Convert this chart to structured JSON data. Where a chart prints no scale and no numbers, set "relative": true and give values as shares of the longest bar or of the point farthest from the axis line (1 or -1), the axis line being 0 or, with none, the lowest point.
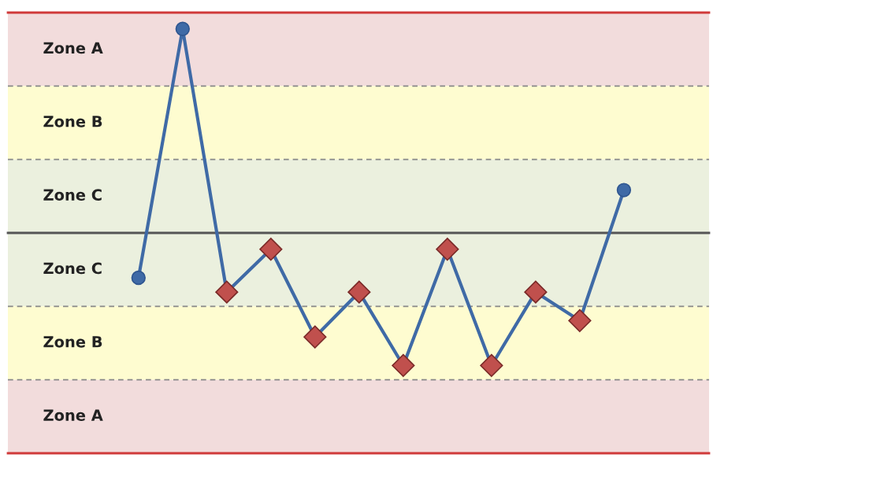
{
  "chart_data": {
    "type": "line",
    "relative": true,
    "categories": [
      null,
      null,
      null,
      null,
      null,
      null,
      null,
      null,
      null,
      null,
      null,
      null
    ],
    "series": [
      {
        "color": "#3f6aa6",
        "marker": "circle",
        "values": [
          -0.22,
          1,
          -0.29,
          -0.08,
          -0.51,
          -0.29,
          -0.65,
          -0.08,
          -0.65,
          -0.29,
          -0.43,
          0.21
        ],
        "colors": [
          "#3f6aa6",
          "#3f6aa6",
          "#c0504d",
          "#c0504d",
          "#c0504d",
          "#c0504d",
          "#c0504d",
          "#c0504d",
          "#c0504d",
          "#c0504d",
          "#c0504d",
          "#3f6aa6"
        ]
      }
    ],
    "bands": [
      {
        "axis": "y",
        "from": 0.72,
        "to": 1.08,
        "label": "Zone A",
        "color": "#f2dcdc"
      },
      {
        "axis": "y",
        "from": 0.36,
        "to": 0.72,
        "label": "Zone B",
        "color": "#fefcd0"
      },
      {
        "axis": "y",
        "from": 0,
        "to": 0.36,
        "label": "Zone C",
        "color": "#ebf0de"
      },
      {
        "axis": "y",
        "from": -0.36,
        "to": 0,
        "label": "Zone C",
        "color": "#ebf0de"
      },
      {
        "axis": "y",
        "from": -0.72,
        "to": -0.36,
        "label": "Zone B",
        "color": "#fefcd0"
      },
      {
        "axis": "y",
        "from": -1.08,
        "to": -0.72,
        "label": "Zone A",
        "color": "#f2dcdc"
      }
    ],
    "ref_lines": [
      {
        "axis": "y",
        "value": 0,
        "color": "#555555",
        "line_style": "solid"
      },
      {
        "axis": "y",
        "value": 0.36,
        "color": "#888888",
        "line_style": "dashed"
      },
      {
        "axis": "y",
        "value": 0.72,
        "color": "#888888",
        "line_style": "dashed"
      },
      {
        "axis": "y",
        "value": -0.36,
        "color": "#888888",
        "line_style": "dashed"
      },
      {
        "axis": "y",
        "value": -0.72,
        "color": "#888888",
        "line_style": "dashed"
      },
      {
        "axis": "y",
        "value": 1.08,
        "color": "#d03a3a",
        "line_style": "solid"
      },
      {
        "axis": "y",
        "value": -1.08,
        "color": "#d03a3a",
        "line_style": "solid"
      }
    ]
  }
}
